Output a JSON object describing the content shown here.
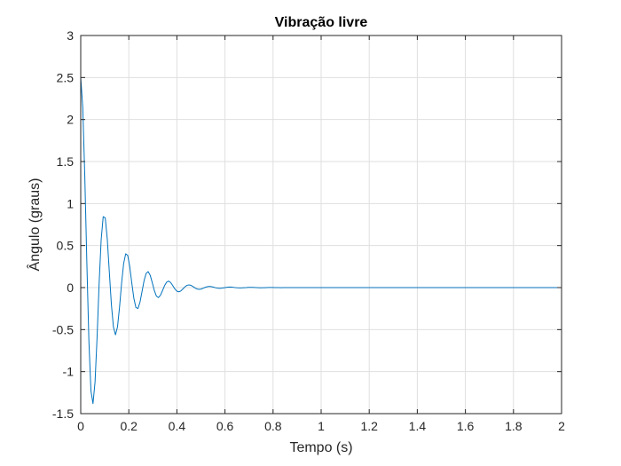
{
  "chart_data": {
    "type": "line",
    "title": "Vibração livre",
    "xlabel": "Tempo (s)",
    "ylabel": "Ângulo (graus)",
    "xlim": [
      0,
      2
    ],
    "ylim": [
      -1.5,
      3
    ],
    "x_ticks": [
      0,
      0.2,
      0.4,
      0.6,
      0.8,
      1,
      1.2,
      1.4,
      1.6,
      1.8,
      2
    ],
    "x_tick_labels": [
      "0",
      "0.2",
      "0.4",
      "0.6",
      "0.8",
      "1",
      "1.2",
      "1.4",
      "1.6",
      "1.8",
      "2"
    ],
    "y_ticks": [
      -1.5,
      -1,
      -0.5,
      0,
      0.5,
      1,
      1.5,
      2,
      2.5,
      3
    ],
    "y_tick_labels": [
      "-1.5",
      "-1",
      "-0.5",
      "0",
      "0.5",
      "1",
      "1.5",
      "2",
      "2.5",
      "3"
    ],
    "grid": true,
    "line_color": "#0072BD",
    "series": [
      {
        "x": [
          0,
          0.0085,
          0.017,
          0.0255,
          0.034,
          0.0425,
          0.051,
          0.0595,
          0.068,
          0.0765,
          0.085,
          0.0935,
          0.102,
          0.1105,
          0.119,
          0.1275,
          0.136,
          0.1445,
          0.153,
          0.1615,
          0.17,
          0.1785,
          0.187,
          0.1955,
          0.204,
          0.2125,
          0.221,
          0.2295,
          0.238,
          0.2465,
          0.255,
          0.2635,
          0.272,
          0.2805,
          0.289,
          0.2975,
          0.306,
          0.3145,
          0.323,
          0.3315,
          0.34,
          0.3485,
          0.357,
          0.3655,
          0.374,
          0.3825,
          0.391,
          0.3995,
          0.408,
          0.4165,
          0.425,
          0.4335,
          0.442,
          0.4505,
          0.459,
          0.4675,
          0.476,
          0.4845,
          0.493,
          0.5015,
          0.51,
          0.5185,
          0.527,
          0.5355,
          0.544,
          0.5525,
          0.561,
          0.5695,
          0.578,
          0.5865,
          0.595,
          0.6035,
          0.612,
          0.6205,
          0.629,
          0.6375,
          0.646,
          0.6545,
          0.663,
          0.6715,
          0.68,
          0.6885,
          0.697,
          0.7055,
          0.714,
          0.7225,
          0.731,
          0.7395,
          0.748,
          0.7565,
          0.765,
          0.7735,
          0.782,
          0.7905,
          0.799,
          0.8075,
          0.816,
          0.8245,
          0.833,
          0.8415,
          0.85,
          0.8585,
          0.867,
          0.8755,
          0.884,
          0.8925,
          0.901,
          0.9095,
          0.918,
          0.9265,
          0.935,
          0.9435,
          0.952,
          0.9605,
          0.969,
          0.9775,
          0.986,
          0.9945,
          1.003,
          1.0115,
          1.02,
          1.05,
          1.1,
          1.15,
          1.2,
          1.3,
          1.4,
          1.5,
          1.6,
          1.7,
          1.8,
          1.9,
          2.0
        ],
        "y": [
          2.5,
          2.144,
          1.313,
          0.291,
          -0.637,
          -1.228,
          -1.381,
          -1.127,
          -0.591,
          0.048,
          0.569,
          0.844,
          0.83,
          0.575,
          0.185,
          -0.2,
          -0.469,
          -0.562,
          -0.467,
          -0.23,
          0.054,
          0.286,
          0.402,
          0.383,
          0.248,
          0.052,
          -0.128,
          -0.237,
          -0.249,
          -0.174,
          -0.047,
          0.083,
          0.169,
          0.19,
          0.146,
          0.06,
          -0.034,
          -0.1,
          -0.119,
          -0.092,
          -0.037,
          0.022,
          0.064,
          0.077,
          0.061,
          0.025,
          -0.014,
          -0.042,
          -0.05,
          -0.04,
          -0.016,
          0.009,
          0.027,
          0.032,
          0.026,
          0.011,
          -0.006,
          -0.017,
          -0.021,
          -0.017,
          -0.007,
          0.004,
          0.011,
          0.014,
          0.011,
          0.005,
          -0.002,
          -0.007,
          -0.009,
          -0.007,
          -0.003,
          0.001,
          0.005,
          0.006,
          0.005,
          0.002,
          -0.001,
          -0.003,
          -0.004,
          -0.003,
          -0.001,
          0.0,
          0.002,
          0.002,
          0.002,
          0.001,
          0.0,
          -0.001,
          -0.002,
          -0.001,
          -0.001,
          0.0,
          0.001,
          0.001,
          0.001,
          0.0,
          0.0,
          0.0,
          -0.001,
          0.0,
          0.0,
          0.0,
          0.0,
          0.0,
          0.0,
          0.0,
          0.0,
          0.0,
          0.0,
          0.0,
          0.0,
          0.0,
          0.0,
          0.0,
          0.0,
          0.0,
          0.0,
          0.0,
          0.0,
          0.0,
          0.0,
          0.0,
          0.0,
          0.0,
          0.0,
          0.0,
          0.0,
          0.0,
          0.0,
          0.0,
          0.0,
          0.0,
          0.0
        ]
      }
    ]
  }
}
